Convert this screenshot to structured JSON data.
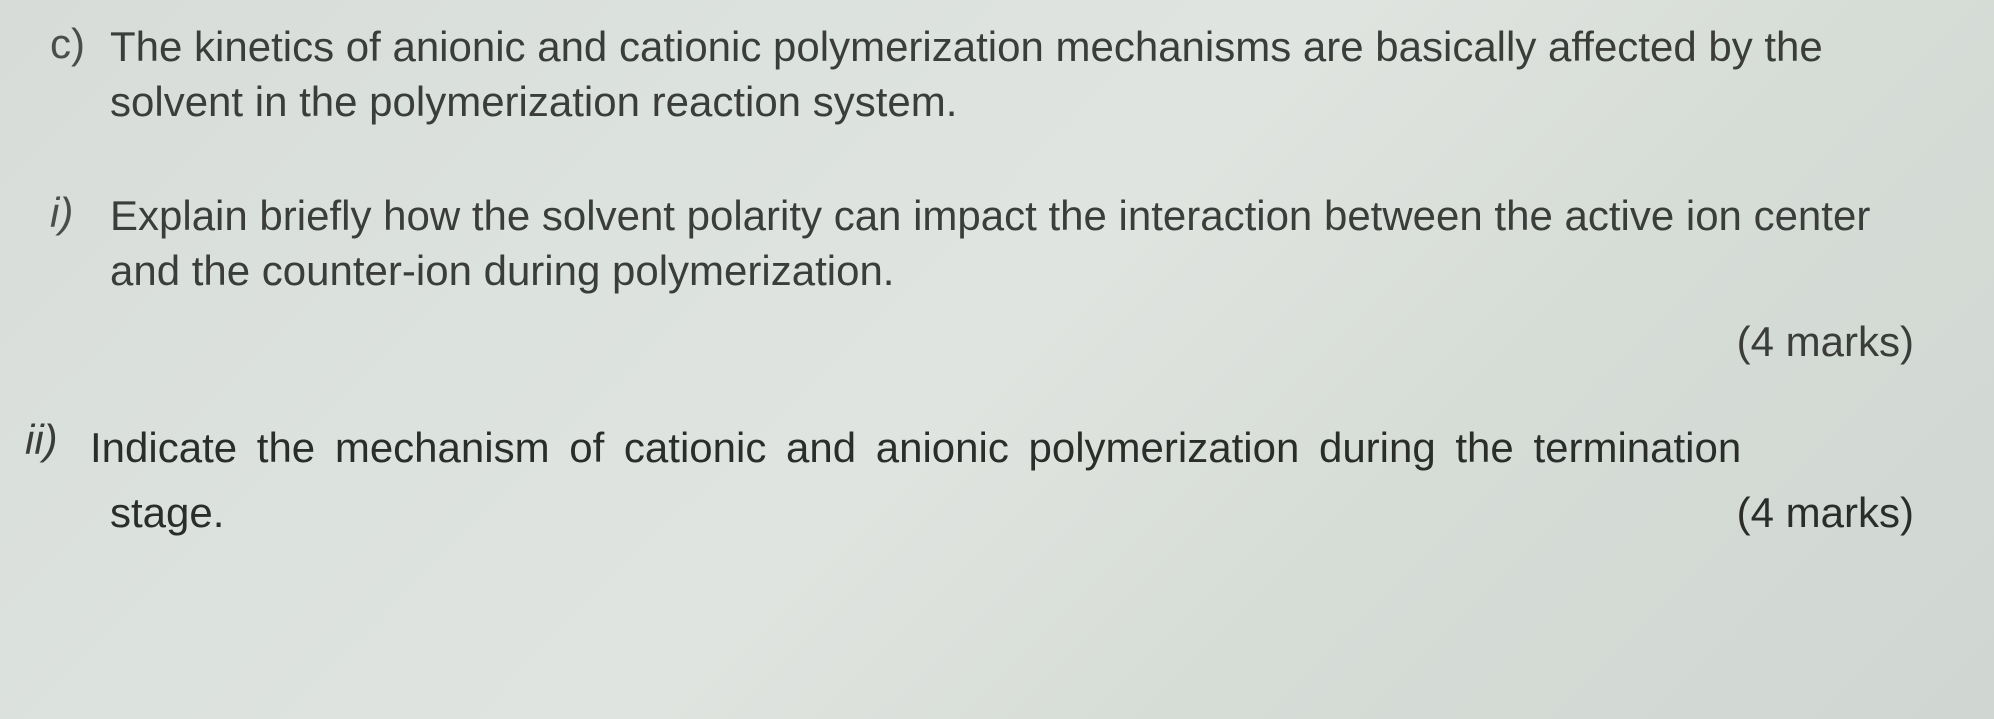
{
  "question_c": {
    "label": "c)",
    "text": "The kinetics of anionic and cationic polymerization mechanisms are basically affected by the solvent in the polymerization reaction system."
  },
  "sub_i": {
    "label": "i)",
    "text": "Explain briefly how the solvent polarity can impact the interaction between the active ion center and the counter-ion during polymerization.",
    "marks": "(4 marks)"
  },
  "sub_ii": {
    "label": "ii)",
    "text": "Indicate the mechanism of cationic and anionic polymerization during the termination",
    "stage": "stage.",
    "marks": "(4 marks)"
  }
}
